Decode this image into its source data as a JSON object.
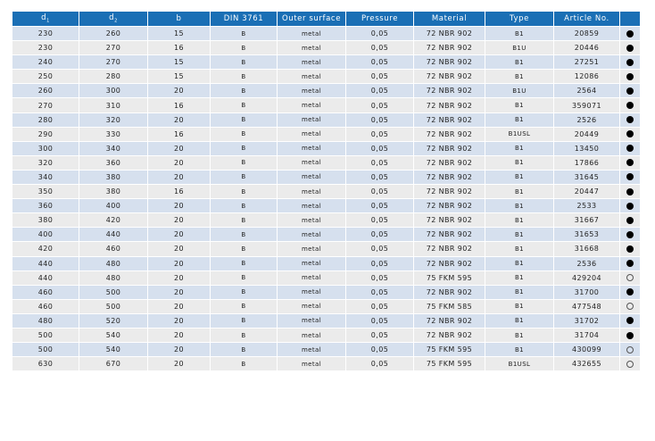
{
  "header": {
    "d1": "d",
    "d1_sub": "1",
    "d2": "d",
    "d2_sub": "2",
    "b": "b",
    "din": "DIN 3761",
    "outer": "Outer surface",
    "pressure": "Pressure",
    "material": "Material",
    "type": "Type",
    "article": "Article No.",
    "availability": ""
  },
  "colors": {
    "header": "#1a6fb5",
    "row_odd": "#d6e0ee",
    "row_even": "#ebebeb"
  },
  "rows": [
    [
      "230",
      "260",
      "15",
      "B",
      "metal",
      "0,05",
      "72 NBR 902",
      "B1",
      "20859",
      "filled"
    ],
    [
      "230",
      "270",
      "16",
      "B",
      "metal",
      "0,05",
      "72 NBR 902",
      "B1U",
      "20446",
      "filled"
    ],
    [
      "240",
      "270",
      "15",
      "B",
      "metal",
      "0,05",
      "72 NBR 902",
      "B1",
      "27251",
      "filled"
    ],
    [
      "250",
      "280",
      "15",
      "B",
      "metal",
      "0,05",
      "72 NBR 902",
      "B1",
      "12086",
      "filled"
    ],
    [
      "260",
      "300",
      "20",
      "B",
      "metal",
      "0,05",
      "72 NBR 902",
      "B1U",
      "2564",
      "filled"
    ],
    [
      "270",
      "310",
      "16",
      "B",
      "metal",
      "0,05",
      "72 NBR 902",
      "B1",
      "359071",
      "filled"
    ],
    [
      "280",
      "320",
      "20",
      "B",
      "metal",
      "0,05",
      "72 NBR 902",
      "B1",
      "2526",
      "filled"
    ],
    [
      "290",
      "330",
      "16",
      "B",
      "metal",
      "0,05",
      "72 NBR 902",
      "B1USL",
      "20449",
      "filled"
    ],
    [
      "300",
      "340",
      "20",
      "B",
      "metal",
      "0,05",
      "72 NBR 902",
      "B1",
      "13450",
      "filled"
    ],
    [
      "320",
      "360",
      "20",
      "B",
      "metal",
      "0,05",
      "72 NBR 902",
      "B1",
      "17866",
      "filled"
    ],
    [
      "340",
      "380",
      "20",
      "B",
      "metal",
      "0,05",
      "72 NBR 902",
      "B1",
      "31645",
      "filled"
    ],
    [
      "350",
      "380",
      "16",
      "B",
      "metal",
      "0,05",
      "72 NBR 902",
      "B1",
      "20447",
      "filled"
    ],
    [
      "360",
      "400",
      "20",
      "B",
      "metal",
      "0,05",
      "72 NBR 902",
      "B1",
      "2533",
      "filled"
    ],
    [
      "380",
      "420",
      "20",
      "B",
      "metal",
      "0,05",
      "72 NBR 902",
      "B1",
      "31667",
      "filled"
    ],
    [
      "400",
      "440",
      "20",
      "B",
      "metal",
      "0,05",
      "72 NBR 902",
      "B1",
      "31653",
      "filled"
    ],
    [
      "420",
      "460",
      "20",
      "B",
      "metal",
      "0,05",
      "72 NBR 902",
      "B1",
      "31668",
      "filled"
    ],
    [
      "440",
      "480",
      "20",
      "B",
      "metal",
      "0,05",
      "72 NBR 902",
      "B1",
      "2536",
      "filled"
    ],
    [
      "440",
      "480",
      "20",
      "B",
      "metal",
      "0,05",
      "75 FKM 595",
      "B1",
      "429204",
      "empty"
    ],
    [
      "460",
      "500",
      "20",
      "B",
      "metal",
      "0,05",
      "72 NBR 902",
      "B1",
      "31700",
      "filled"
    ],
    [
      "460",
      "500",
      "20",
      "B",
      "metal",
      "0,05",
      "75 FKM 585",
      "B1",
      "477548",
      "empty"
    ],
    [
      "480",
      "520",
      "20",
      "B",
      "metal",
      "0,05",
      "72 NBR 902",
      "B1",
      "31702",
      "filled"
    ],
    [
      "500",
      "540",
      "20",
      "B",
      "metal",
      "0,05",
      "72 NBR 902",
      "B1",
      "31704",
      "filled"
    ],
    [
      "500",
      "540",
      "20",
      "B",
      "metal",
      "0,05",
      "75 FKM 595",
      "B1",
      "430099",
      "empty"
    ],
    [
      "630",
      "670",
      "20",
      "B",
      "metal",
      "0,05",
      "75 FKM 595",
      "B1USL",
      "432655",
      "empty"
    ]
  ]
}
